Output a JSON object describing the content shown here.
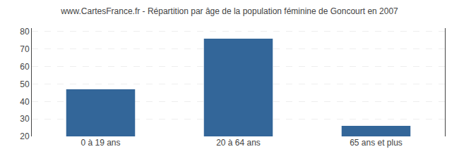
{
  "chart_data": {
    "type": "bar",
    "title": "www.CartesFrance.fr - Répartition par âge de la population féminine de Goncourt en 2007",
    "categories": [
      "0 à 19 ans",
      "20 à 64 ans",
      "65 ans et plus"
    ],
    "values": [
      47,
      76,
      26
    ],
    "color": "#336699",
    "ylim": [
      20,
      82
    ],
    "yticks": [
      20,
      30,
      40,
      50,
      60,
      70,
      80
    ],
    "grid": true
  }
}
